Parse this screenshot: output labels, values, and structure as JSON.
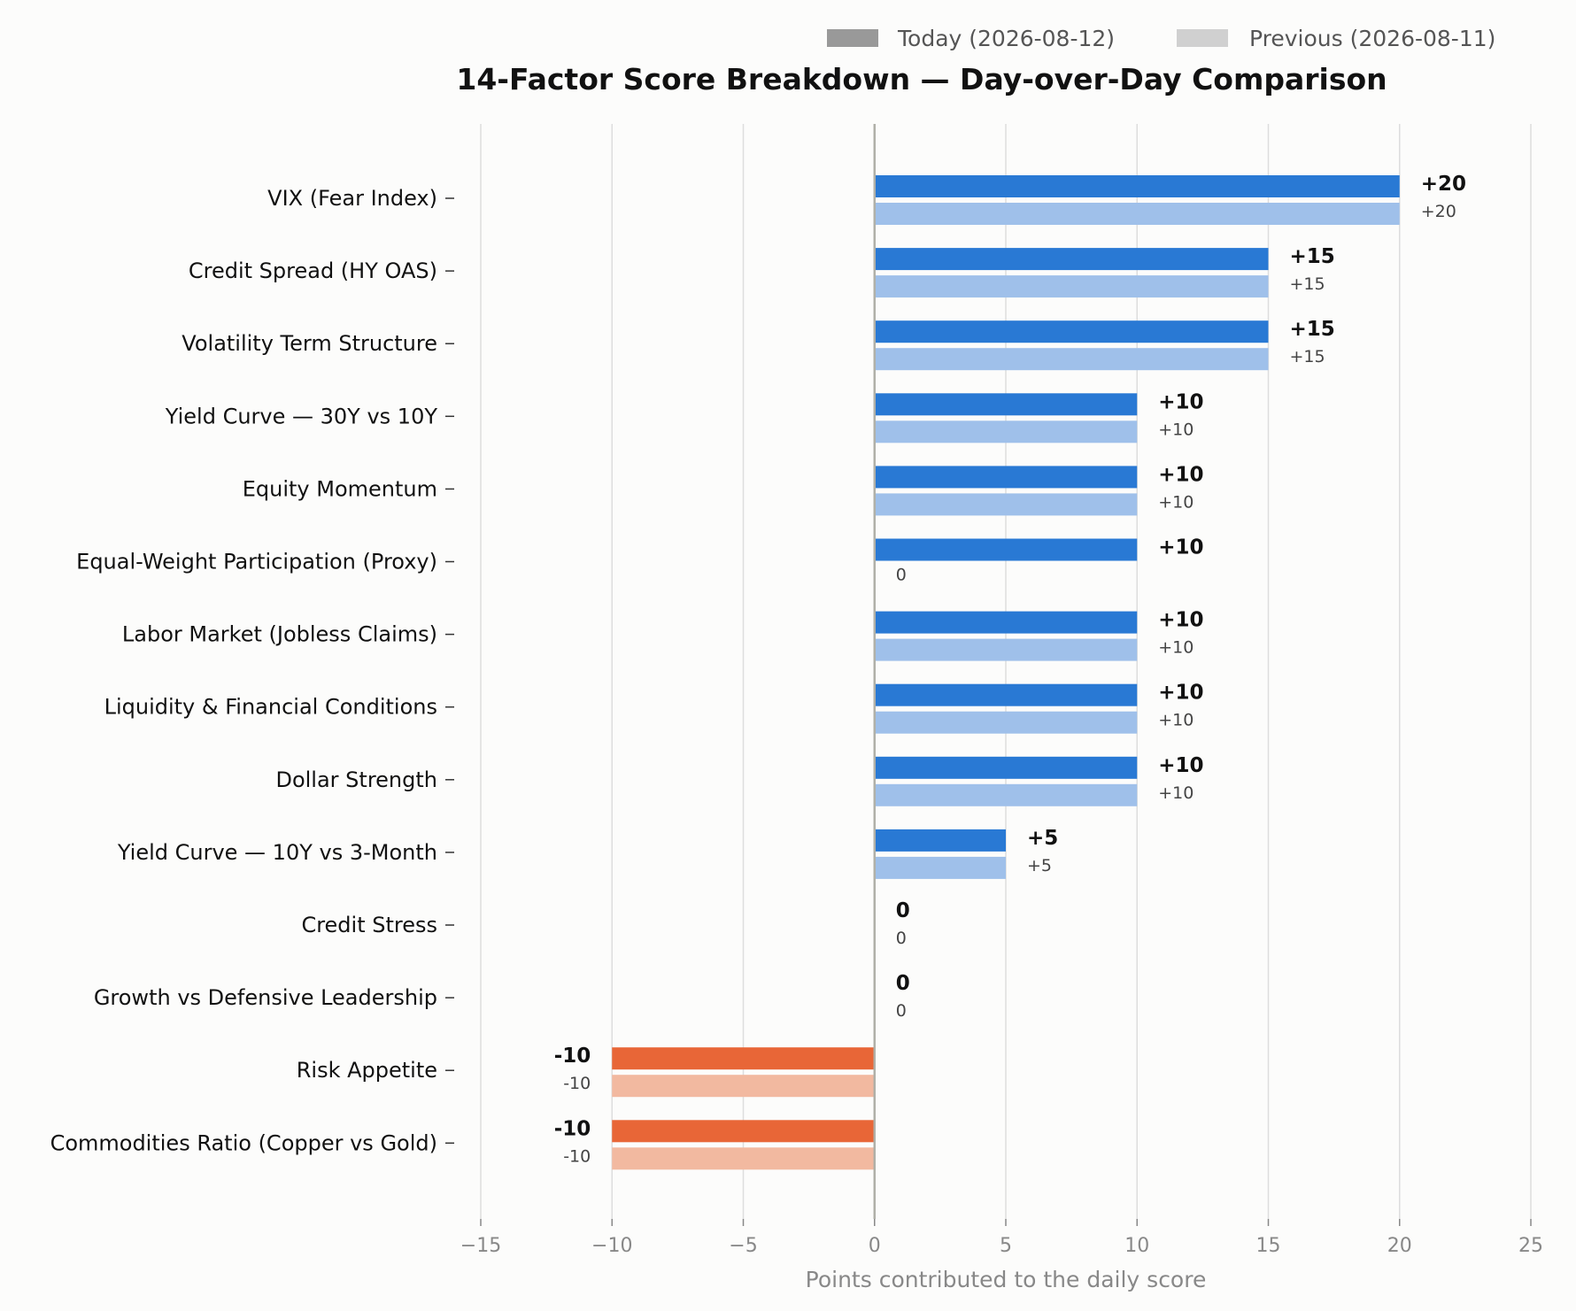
{
  "chart_data": {
    "type": "bar",
    "orientation": "horizontal",
    "title": "14-Factor Score Breakdown — Day-over-Day Comparison",
    "xlabel": "Points contributed to the daily score",
    "ylabel": "",
    "xlim": [
      -15,
      25
    ],
    "xticks": [
      -15,
      -10,
      -5,
      0,
      5,
      10,
      15,
      20,
      25
    ],
    "xtick_labels": [
      "−15",
      "−10",
      "−5",
      "0",
      "5",
      "10",
      "15",
      "20",
      "25"
    ],
    "grid": "vertical",
    "legend_position": "top-right",
    "categories": [
      "VIX (Fear Index)",
      "Credit Spread (HY OAS)",
      "Volatility Term Structure",
      "Yield Curve — 30Y vs 10Y",
      "Equity Momentum",
      "Equal-Weight Participation (Proxy)",
      "Labor Market (Jobless Claims)",
      "Liquidity & Financial Conditions",
      "Dollar Strength",
      "Yield Curve — 10Y vs 3-Month",
      "Credit Stress",
      "Growth vs Defensive Leadership",
      "Risk Appetite",
      "Commodities Ratio (Copper vs Gold)"
    ],
    "series": [
      {
        "name": "Today (2026-08-12)",
        "values": [
          20,
          15,
          15,
          10,
          10,
          10,
          10,
          10,
          10,
          5,
          0,
          0,
          -10,
          -10
        ],
        "labels": [
          "+20",
          "+15",
          "+15",
          "+10",
          "+10",
          "+10",
          "+10",
          "+10",
          "+10",
          "+5",
          "0",
          "0",
          "-10",
          "-10"
        ]
      },
      {
        "name": "Previous (2026-08-11)",
        "values": [
          20,
          15,
          15,
          10,
          10,
          0,
          10,
          10,
          10,
          5,
          0,
          0,
          -10,
          -10
        ],
        "labels": [
          "+20",
          "+15",
          "+15",
          "+10",
          "+10",
          "0",
          "+10",
          "+10",
          "+10",
          "+5",
          "0",
          "0",
          "-10",
          "-10"
        ]
      }
    ],
    "colors": {
      "positive_today": "#2979d4",
      "positive_previous": "#9fc0ea",
      "negative_today": "#e86637",
      "negative_previous": "#f2b9a0",
      "legend_today": "#999999",
      "legend_previous": "#d0d0d0"
    }
  }
}
